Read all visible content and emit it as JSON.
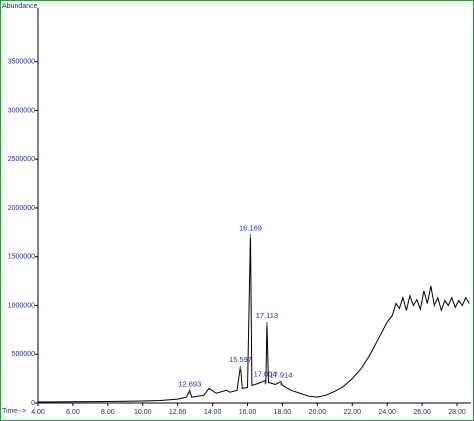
{
  "chart_data": {
    "type": "line",
    "y_label": "Abundance",
    "x_label": "Time-->",
    "xlim": [
      4,
      28.8
    ],
    "ylim": [
      0,
      4050000
    ],
    "xticks": [
      {
        "value": 4,
        "label": "4.00"
      },
      {
        "value": 6,
        "label": "6.00"
      },
      {
        "value": 8,
        "label": "8.00"
      },
      {
        "value": 10,
        "label": "10.00"
      },
      {
        "value": 12,
        "label": "12.00"
      },
      {
        "value": 14,
        "label": "14.00"
      },
      {
        "value": 16,
        "label": "16.00"
      },
      {
        "value": 18,
        "label": "18.00"
      },
      {
        "value": 20,
        "label": "20.00"
      },
      {
        "value": 22,
        "label": "22.00"
      },
      {
        "value": 24,
        "label": "24.00"
      },
      {
        "value": 26,
        "label": "26.00"
      },
      {
        "value": 28,
        "label": "28.00"
      }
    ],
    "yticks": [
      0,
      500000,
      1000000,
      1500000,
      2000000,
      2500000,
      3000000,
      3500000
    ],
    "color": "#000000",
    "peak_color": "#1a2ad0",
    "x": [
      4.0,
      8.0,
      10.0,
      11.0,
      12.0,
      12.5,
      12.693,
      12.8,
      13.5,
      13.8,
      14.2,
      14.8,
      15.0,
      15.4,
      15.597,
      15.7,
      16.0,
      16.169,
      16.25,
      16.6,
      17.004,
      17.05,
      17.113,
      17.2,
      17.6,
      17.914,
      18.0,
      18.5,
      19.0,
      19.5,
      20.0,
      20.5,
      21.0,
      21.5,
      22.0,
      22.5,
      23.0,
      23.5,
      24.0,
      24.3,
      24.5,
      24.7,
      24.9,
      25.1,
      25.3,
      25.5,
      25.7,
      25.9,
      26.1,
      26.3,
      26.5,
      26.7,
      26.9,
      27.1,
      27.3,
      27.5,
      27.7,
      27.9,
      28.1,
      28.3,
      28.5,
      28.7
    ],
    "values": [
      10000,
      15000,
      20000,
      25000,
      40000,
      60000,
      130000,
      60000,
      80000,
      150000,
      100000,
      130000,
      110000,
      130000,
      380000,
      150000,
      160000,
      1730000,
      180000,
      200000,
      230000,
      200000,
      830000,
      210000,
      190000,
      220000,
      180000,
      130000,
      100000,
      70000,
      60000,
      80000,
      120000,
      170000,
      250000,
      350000,
      490000,
      660000,
      830000,
      900000,
      1020000,
      970000,
      1080000,
      950000,
      1100000,
      1000000,
      1060000,
      960000,
      1150000,
      1020000,
      1200000,
      1000000,
      1080000,
      950000,
      1050000,
      1000000,
      1080000,
      980000,
      1050000,
      1000000,
      1080000,
      1020000
    ],
    "peaks": {
      "x": [
        12.693,
        15.597,
        16.169,
        17.004,
        17.113,
        17.914
      ],
      "values": [
        130000,
        380000,
        1730000,
        230000,
        830000,
        220000
      ]
    }
  }
}
